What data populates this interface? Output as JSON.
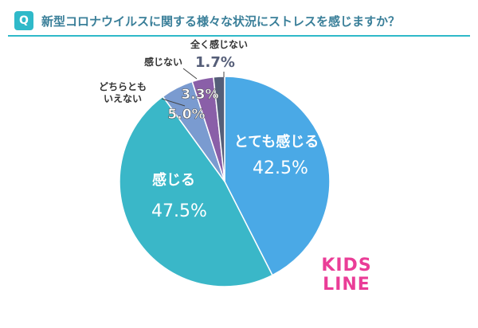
{
  "header": {
    "badge": "Q",
    "question": "新型コロナウイルスに関する様々な状況にストレスを感じますか？"
  },
  "chart_data": {
    "type": "pie",
    "slices": [
      {
        "label": "とても感じる",
        "value": 42.5,
        "display": "42.5%",
        "color": "#4aa9e6"
      },
      {
        "label": "感じる",
        "value": 47.5,
        "display": "47.5%",
        "color": "#3ab7c8"
      },
      {
        "label": "どちらとも\nいえない",
        "value": 5.0,
        "display": "5.0%",
        "color": "#7a9bd0"
      },
      {
        "label": "感じない",
        "value": 3.3,
        "display": "3.3%",
        "color": "#8a5fa8"
      },
      {
        "label": "全く感じない",
        "value": 1.7,
        "display": "1.7%",
        "color": "#555e78"
      }
    ],
    "start": "12 o'clock",
    "direction": "clockwise"
  },
  "logo": {
    "line1": "KIDS",
    "line2": "LINE"
  }
}
